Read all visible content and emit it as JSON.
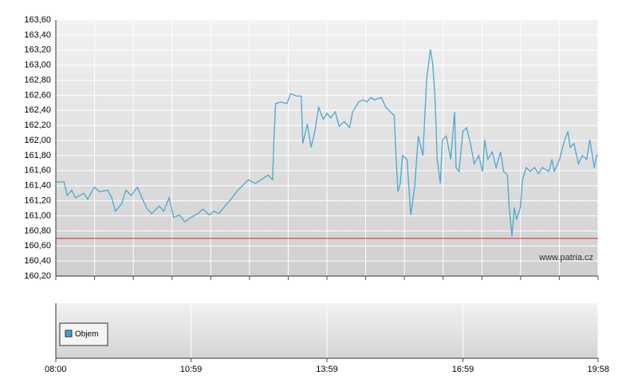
{
  "chart_data": {
    "type": "line",
    "x": [
      "08:00",
      "08:11",
      "08:15",
      "08:21",
      "08:26",
      "08:37",
      "08:42",
      "08:51",
      "08:58",
      "09:09",
      "09:14",
      "09:19",
      "09:27",
      "09:33",
      "09:40",
      "09:48",
      "09:54",
      "10:01",
      "10:07",
      "10:17",
      "10:23",
      "10:30",
      "10:36",
      "10:44",
      "10:51",
      "10:59",
      "11:08",
      "11:15",
      "11:23",
      "11:29",
      "11:36",
      "11:44",
      "11:52",
      "12:01",
      "12:08",
      "12:15",
      "12:24",
      "12:32",
      "12:41",
      "12:47",
      "12:49",
      "12:51",
      "12:58",
      "13:06",
      "13:11",
      "13:19",
      "13:25",
      "13:27",
      "13:33",
      "13:38",
      "13:43",
      "13:48",
      "13:54",
      "13:59",
      "14:04",
      "14:10",
      "14:15",
      "14:22",
      "14:29",
      "14:33",
      "14:41",
      "14:47",
      "14:52",
      "14:57",
      "15:02",
      "15:11",
      "15:17",
      "15:23",
      "15:28",
      "15:31",
      "15:33",
      "15:36",
      "15:39",
      "15:45",
      "15:50",
      "15:55",
      "16:00",
      "16:06",
      "16:11",
      "16:16",
      "16:19",
      "16:22",
      "16:25",
      "16:29",
      "16:32",
      "16:37",
      "16:43",
      "16:48",
      "16:50",
      "16:54",
      "16:59",
      "17:04",
      "17:09",
      "17:14",
      "17:20",
      "17:25",
      "17:28",
      "17:32",
      "17:38",
      "17:43",
      "17:49",
      "17:53",
      "17:58",
      "18:00",
      "18:04",
      "18:07",
      "18:10",
      "18:15",
      "18:18",
      "18:23",
      "18:28",
      "18:34",
      "18:39",
      "18:44",
      "18:53",
      "18:57",
      "19:00",
      "19:07",
      "19:13",
      "19:18",
      "19:21",
      "19:26",
      "19:32",
      "19:37",
      "19:43",
      "19:47",
      "19:53",
      "19:56",
      "19:58"
    ],
    "series": [
      {
        "color": "#4aa8d0",
        "values": [
          161.45,
          161.45,
          161.27,
          161.34,
          161.24,
          161.3,
          161.22,
          161.38,
          161.32,
          161.34,
          161.24,
          161.06,
          161.16,
          161.34,
          161.27,
          161.38,
          161.24,
          161.09,
          161.03,
          161.13,
          161.06,
          161.24,
          160.98,
          161.01,
          160.92,
          160.98,
          161.03,
          161.09,
          161.01,
          161.06,
          161.03,
          161.13,
          161.22,
          161.34,
          161.41,
          161.48,
          161.43,
          161.48,
          161.54,
          161.48,
          162.06,
          162.49,
          162.51,
          162.49,
          162.62,
          162.59,
          162.59,
          161.96,
          162.22,
          161.91,
          162.12,
          162.44,
          162.28,
          162.36,
          162.3,
          162.38,
          162.19,
          162.25,
          162.17,
          162.38,
          162.51,
          162.54,
          162.51,
          162.57,
          162.54,
          162.57,
          162.44,
          162.38,
          162.33,
          161.69,
          161.32,
          161.43,
          161.8,
          161.75,
          161.01,
          161.38,
          162.06,
          161.8,
          162.81,
          163.21,
          163.02,
          162.59,
          161.75,
          161.43,
          162.01,
          162.06,
          161.75,
          162.38,
          161.64,
          161.59,
          162.12,
          162.17,
          161.96,
          161.69,
          161.8,
          161.59,
          162.01,
          161.75,
          161.85,
          161.64,
          161.85,
          161.59,
          161.54,
          161.16,
          160.73,
          161.11,
          160.95,
          161.11,
          161.48,
          161.64,
          161.59,
          161.64,
          161.56,
          161.64,
          161.59,
          161.75,
          161.59,
          161.75,
          161.98,
          162.12,
          161.91,
          161.96,
          161.69,
          161.8,
          161.75,
          162.01,
          161.64,
          161.8,
          161.8
        ]
      }
    ],
    "xlim": [
      "08:00",
      "19:58"
    ],
    "xticks": [
      "08:00",
      "10:59",
      "13:59",
      "16:59",
      "19:58"
    ],
    "ylim": [
      160.2,
      163.6
    ],
    "yticks": [
      {
        "value": 160.2,
        "label": "160,20"
      },
      {
        "value": 160.4,
        "label": "160,40"
      },
      {
        "value": 160.6,
        "label": "160,60"
      },
      {
        "value": 160.8,
        "label": "160,80"
      },
      {
        "value": 161.0,
        "label": "161,00"
      },
      {
        "value": 161.2,
        "label": "161,20"
      },
      {
        "value": 161.4,
        "label": "161,40"
      },
      {
        "value": 161.6,
        "label": "161,60"
      },
      {
        "value": 161.8,
        "label": "161,80"
      },
      {
        "value": 162.0,
        "label": "162,00"
      },
      {
        "value": 162.2,
        "label": "162,20"
      },
      {
        "value": 162.4,
        "label": "162,40"
      },
      {
        "value": 162.6,
        "label": "162,60"
      },
      {
        "value": 162.8,
        "label": "162,80"
      },
      {
        "value": 163.0,
        "label": "163,00"
      },
      {
        "value": 163.2,
        "label": "163,20"
      },
      {
        "value": 163.4,
        "label": "163,40"
      },
      {
        "value": 163.6,
        "label": "163,60"
      }
    ],
    "grid": true,
    "reference_line": {
      "value": 160.7,
      "color": "#d03030"
    },
    "watermark": "www.patria.cz",
    "volume_panel": {
      "legend": "Objem",
      "color": "#4a9fd0"
    }
  }
}
